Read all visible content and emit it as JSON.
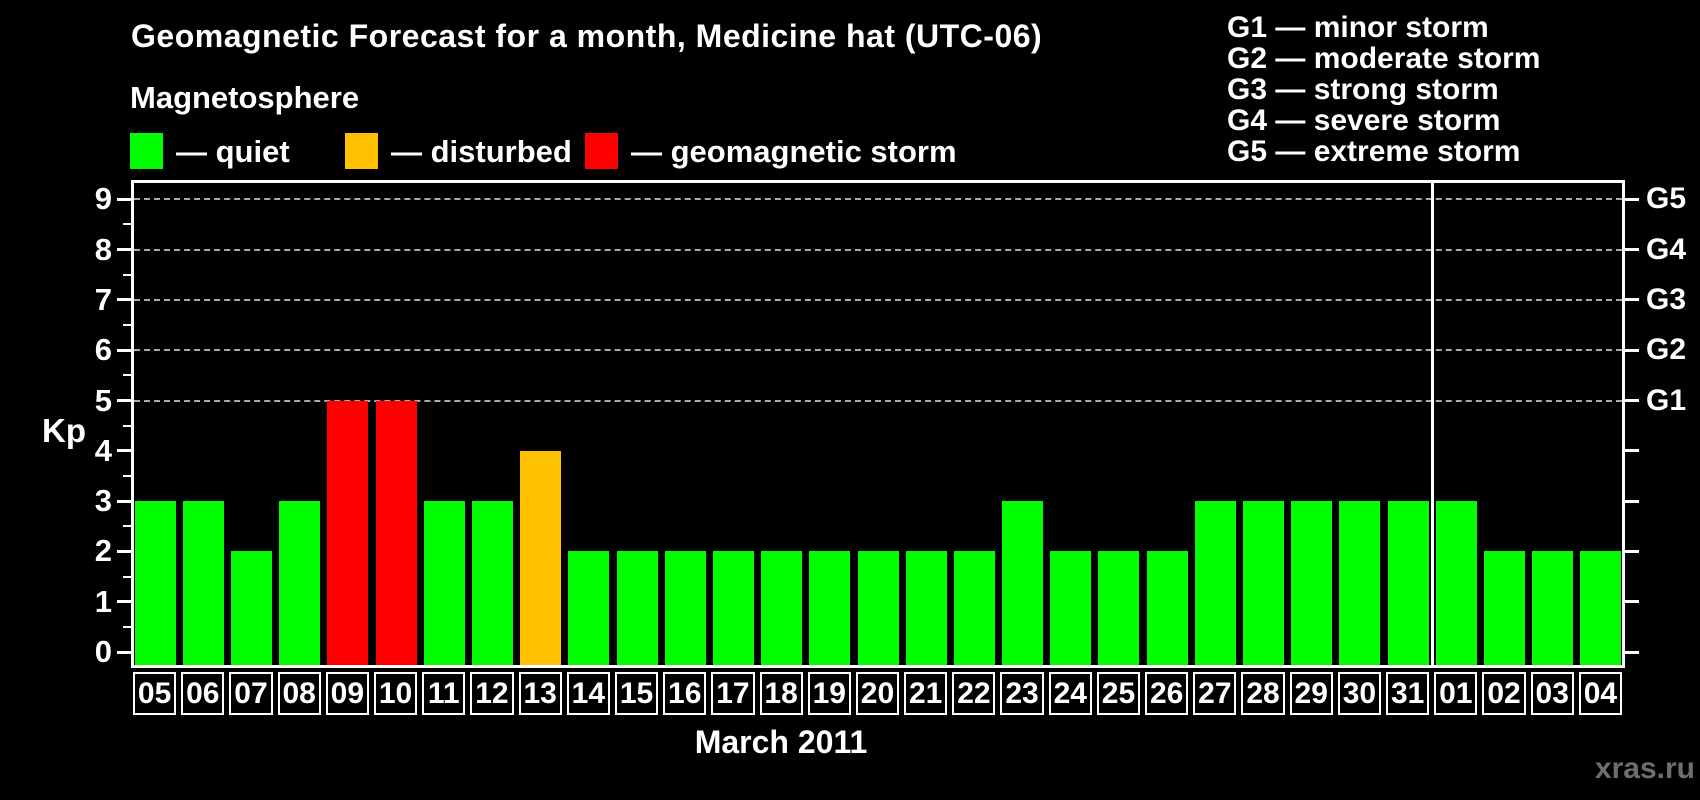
{
  "title": "Geomagnetic Forecast for a month, Medicine hat (UTC-06)",
  "subtitle": "Magnetosphere",
  "legend": {
    "items": [
      {
        "name": "quiet",
        "label": "— quiet",
        "color": "#00ff00"
      },
      {
        "name": "disturbed",
        "label": "— disturbed",
        "color": "#ffc000"
      },
      {
        "name": "storm",
        "label": "— geomagnetic storm",
        "color": "#ff0000"
      }
    ]
  },
  "g_legend": [
    "G1 — minor storm",
    "G2 — moderate storm",
    "G3 — strong storm",
    "G4 — severe storm",
    "G5 — extreme storm"
  ],
  "watermark": "xras.ru",
  "chart_data": {
    "type": "bar",
    "title": "Geomagnetic Forecast for a month, Medicine hat (UTC-06)",
    "xlabel": "March 2011",
    "ylabel": "Kp",
    "ylim": [
      0,
      9
    ],
    "grid": "dashed horizontal lines at Kp 5-9 (storm levels G1-G5)",
    "legend_position": "top-left",
    "categories": [
      "05",
      "06",
      "07",
      "08",
      "09",
      "10",
      "11",
      "12",
      "13",
      "14",
      "15",
      "16",
      "17",
      "18",
      "19",
      "20",
      "21",
      "22",
      "23",
      "24",
      "25",
      "26",
      "27",
      "28",
      "29",
      "30",
      "31",
      "01",
      "02",
      "03",
      "04"
    ],
    "values": [
      3,
      3,
      2,
      3,
      5,
      5,
      3,
      3,
      4,
      2,
      2,
      2,
      2,
      2,
      2,
      2,
      2,
      2,
      3,
      2,
      2,
      2,
      3,
      3,
      3,
      3,
      3,
      3,
      2,
      2,
      2
    ],
    "statuses": [
      "quiet",
      "quiet",
      "quiet",
      "quiet",
      "storm",
      "storm",
      "quiet",
      "quiet",
      "disturbed",
      "quiet",
      "quiet",
      "quiet",
      "quiet",
      "quiet",
      "quiet",
      "quiet",
      "quiet",
      "quiet",
      "quiet",
      "quiet",
      "quiet",
      "quiet",
      "quiet",
      "quiet",
      "quiet",
      "quiet",
      "quiet",
      "quiet",
      "quiet",
      "quiet",
      "quiet"
    ],
    "status_colors": {
      "quiet": "#00ff00",
      "disturbed": "#ffc000",
      "storm": "#ff0000"
    },
    "yticks": [
      0,
      1,
      2,
      3,
      4,
      5,
      6,
      7,
      8,
      9
    ],
    "gridlines_at": [
      5,
      6,
      7,
      8,
      9
    ],
    "right_labels": [
      {
        "text": "G5",
        "kp": 9
      },
      {
        "text": "G4",
        "kp": 8
      },
      {
        "text": "G3",
        "kp": 7
      },
      {
        "text": "G2",
        "kp": 6
      },
      {
        "text": "G1",
        "kp": 5
      }
    ],
    "month_boundary_after": "31"
  }
}
